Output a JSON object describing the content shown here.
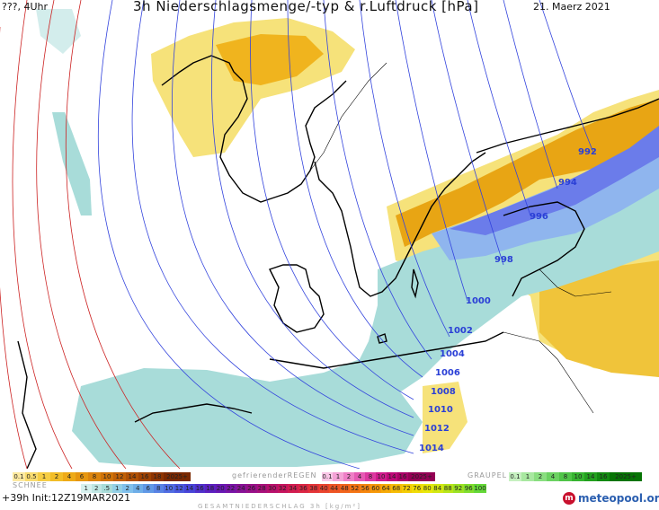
{
  "header": {
    "left": "???, 4Uhr",
    "title": "3h Niederschlagsmenge/-typ & r.Luftdruck [hPa]",
    "date": "21. Maerz 2021"
  },
  "isobar_labels": [
    "992",
    "994",
    "996",
    "998",
    "1000",
    "1002",
    "1004",
    "1006",
    "1008",
    "1010",
    "1012",
    "1014"
  ],
  "legend": {
    "rain_values": [
      "0.1",
      "0.5",
      "1",
      "2",
      "4",
      "6",
      "8",
      "10",
      "12",
      "14",
      "16",
      "18",
      "2025+"
    ],
    "freezing_rain_title": "gefrierenderREGEN",
    "freezing_rain_values": [
      "0.1",
      "1",
      "2",
      "4",
      "8",
      "10",
      "14",
      "16",
      "2025+"
    ],
    "graupel_title": "GRAUPEL",
    "graupel_values": [
      "0.1",
      "1",
      "2",
      "4",
      "8",
      "10",
      "14",
      "16",
      "2025+"
    ],
    "snow_title": "SCHNEE",
    "total_values": [
      "1",
      "2",
      ".5",
      "1",
      "2",
      "4",
      "6",
      "8",
      "10",
      "12",
      "14",
      "16",
      "18",
      "20",
      "22",
      "24",
      "26",
      "28",
      "30",
      "32",
      "34",
      "36",
      "38",
      "40",
      "44",
      "48",
      "52",
      "56",
      "60",
      "64",
      "68",
      "72",
      "76",
      "80",
      "84",
      "88",
      "92",
      "96",
      "100"
    ],
    "total_title": "GESAMTNIEDERSCHLAG 3h [kg/m²]"
  },
  "footer": {
    "left": "+39h  Init:12Z19MAR2021",
    "logo": "meteopool.org"
  },
  "colors": {
    "rain_light": "#f6e27a",
    "rain_mid": "#f0b41e",
    "rain_dark": "#e08a10",
    "snow_light": "#a8dcd9",
    "snow_mid": "#93c0ea",
    "snow_dark": "#6b7cea",
    "isobar": "#3344dd",
    "isobar_high": "#cc2222"
  }
}
